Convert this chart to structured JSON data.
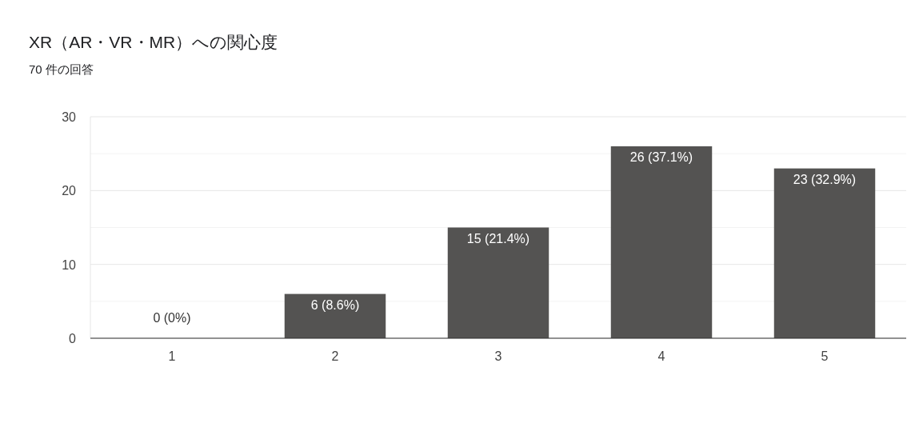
{
  "chart_data": {
    "type": "bar",
    "title": "XR（AR・VR・MR）への関心度",
    "subtitle": "70 件の回答",
    "categories": [
      "1",
      "2",
      "3",
      "4",
      "5"
    ],
    "values": [
      0,
      6,
      15,
      26,
      23
    ],
    "value_labels": [
      "0 (0%)",
      "6 (8.6%)",
      "15 (21.4%)",
      "26 (37.1%)",
      "23 (32.9%)"
    ],
    "color": "#545352",
    "ylim": [
      0,
      30
    ],
    "yticks": [
      0,
      {
        "value": 5,
        "label": null
      },
      10,
      {
        "value": 15,
        "label": null
      },
      20,
      {
        "value": 25,
        "label": null
      },
      30
    ],
    "grid": "y"
  }
}
